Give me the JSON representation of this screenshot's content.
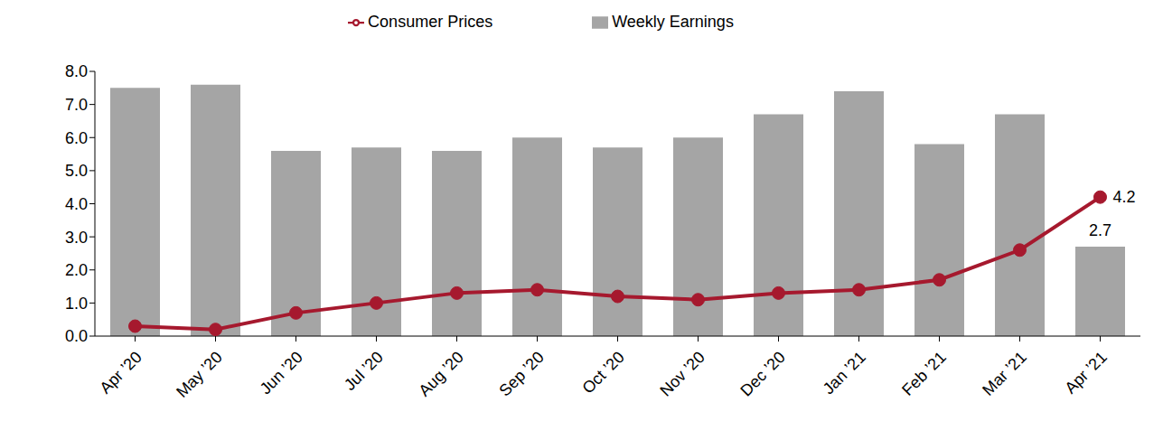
{
  "chart_data": {
    "type": "bar",
    "categories": [
      "Apr ’20",
      "May ’20",
      "Jun ’20",
      "Jul ’20",
      "Aug ’20",
      "Sep ’20",
      "Oct ’20",
      "Nov ’20",
      "Dec ’20",
      "Jan ’21",
      "Feb ’21",
      "Mar ’21",
      "Apr ’21"
    ],
    "series": [
      {
        "name": "Weekly Earnings",
        "type": "bar",
        "color": "#a5a5a5",
        "values": [
          7.5,
          7.6,
          5.6,
          5.7,
          5.6,
          6.0,
          5.7,
          6.0,
          6.7,
          7.4,
          5.8,
          6.7,
          2.7
        ],
        "value_labels": [
          null,
          null,
          null,
          null,
          null,
          null,
          null,
          null,
          null,
          null,
          null,
          null,
          "2.7"
        ]
      },
      {
        "name": "Consumer Prices",
        "type": "line",
        "color": "#a6192e",
        "marker": "circle",
        "values": [
          0.3,
          0.2,
          0.7,
          1.0,
          1.3,
          1.4,
          1.2,
          1.1,
          1.3,
          1.4,
          1.7,
          2.6,
          4.2
        ],
        "value_labels": [
          null,
          null,
          null,
          null,
          null,
          null,
          null,
          null,
          null,
          null,
          null,
          null,
          "4.2"
        ]
      }
    ],
    "ylim": [
      0,
      8
    ],
    "yticks": [
      {
        "value": 0,
        "label": "0.0"
      },
      {
        "value": 1,
        "label": "1.0"
      },
      {
        "value": 2,
        "label": "2.0"
      },
      {
        "value": 3,
        "label": "3.0"
      },
      {
        "value": 4,
        "label": "4.0"
      },
      {
        "value": 5,
        "label": "5.0"
      },
      {
        "value": 6,
        "label": "6.0"
      },
      {
        "value": 7,
        "label": "7.0"
      },
      {
        "value": 8,
        "label": "8.0"
      }
    ],
    "grid": false,
    "legend": "top"
  }
}
